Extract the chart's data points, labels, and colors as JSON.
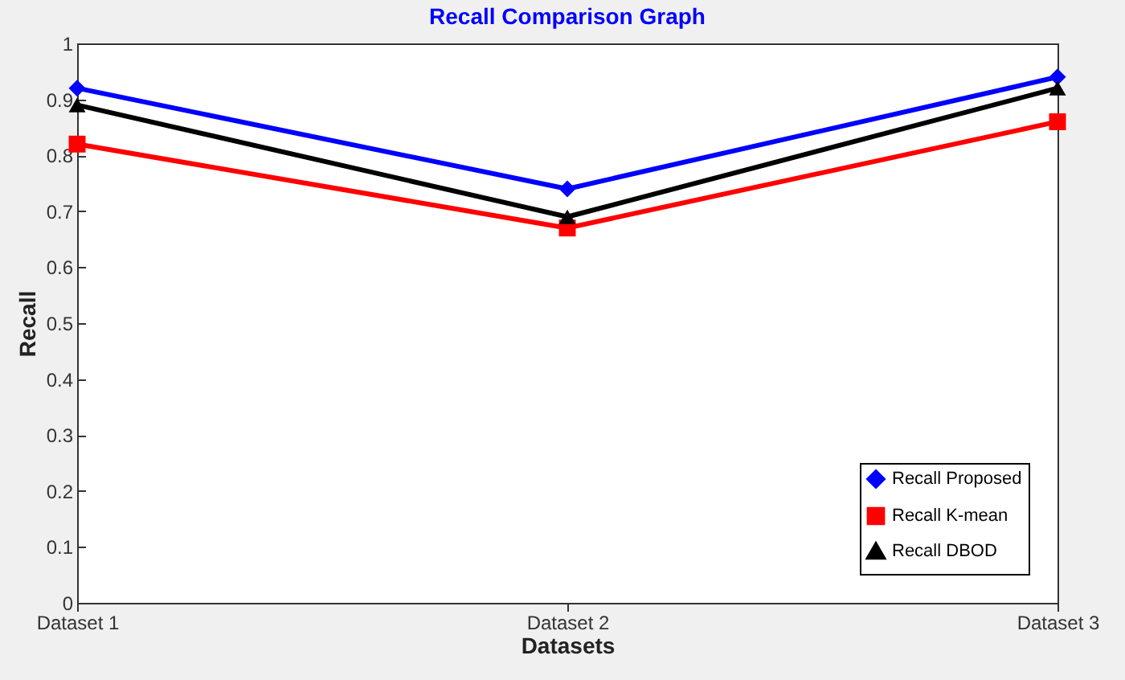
{
  "chart_data": {
    "type": "line",
    "title": "Recall Comparison Graph",
    "xlabel": "Datasets",
    "ylabel": "Recall",
    "categories": [
      "Dataset 1",
      "Dataset 2",
      "Dataset 3"
    ],
    "series": [
      {
        "name": "Recall Proposed",
        "color": "#0000ff",
        "marker": "diamond",
        "values": [
          0.92,
          0.74,
          0.94
        ]
      },
      {
        "name": "Recall K-mean",
        "color": "#ff0000",
        "marker": "square",
        "values": [
          0.82,
          0.67,
          0.86
        ]
      },
      {
        "name": "Recall DBOD",
        "color": "#000000",
        "marker": "triangle",
        "values": [
          0.89,
          0.69,
          0.92
        ]
      }
    ],
    "ylim": [
      0,
      1
    ],
    "yticks": [
      0,
      0.1,
      0.2,
      0.3,
      0.4,
      0.5,
      0.6,
      0.7,
      0.8,
      0.9,
      1
    ],
    "grid": false,
    "legend": "bottom right"
  }
}
